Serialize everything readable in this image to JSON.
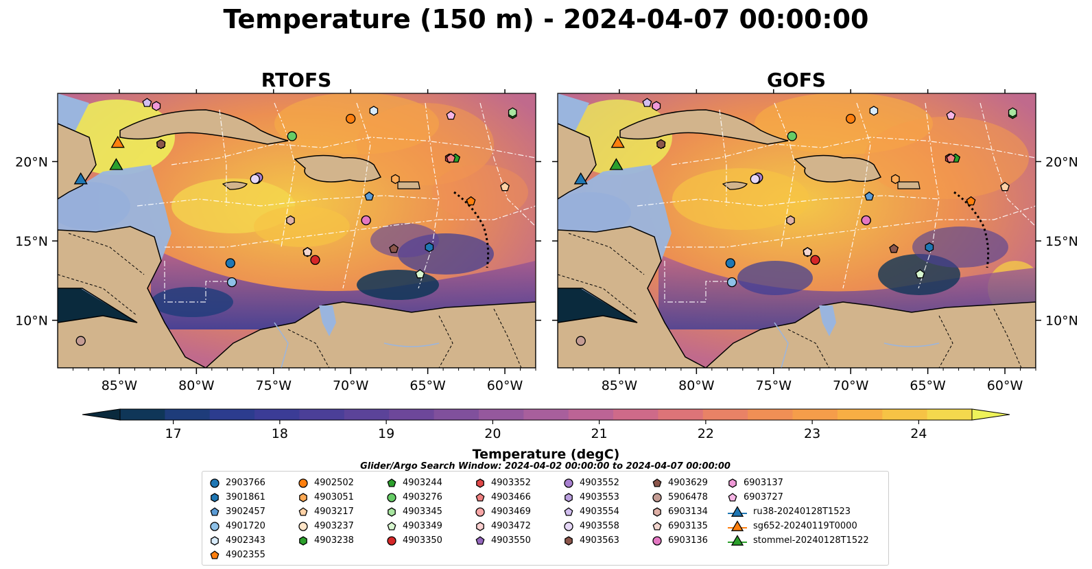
{
  "title": "Temperature (150 m) - 2024-04-07 00:00:00",
  "panels": [
    {
      "name": "RTOFS"
    },
    {
      "name": "GOFS"
    }
  ],
  "axes": {
    "lon_ticks": [
      "85°W",
      "80°W",
      "75°W",
      "70°W",
      "65°W",
      "60°W"
    ],
    "lat_ticks": [
      "20°N",
      "15°N",
      "10°N"
    ]
  },
  "chart_data": {
    "type": "heatmap",
    "colorbar": {
      "label": "Temperature (degC)",
      "min": 16.5,
      "max": 24.5,
      "step": 0.5,
      "ticks": [
        17,
        18,
        19,
        20,
        21,
        22,
        23,
        24
      ],
      "extend": "both",
      "colors": [
        "#0a2a3d",
        "#0f3658",
        "#1e3c7a",
        "#2c3c8e",
        "#3b3c96",
        "#4b3f98",
        "#5b4399",
        "#6d479a",
        "#80509c",
        "#95589d",
        "#a85f9c",
        "#bc6495",
        "#ce6a89",
        "#dd7478",
        "#e98266",
        "#f08f55",
        "#f59d4a",
        "#f7ae44",
        "#f6c345",
        "#f4d84d",
        "#eef35a"
      ]
    },
    "lon_range": [
      -89,
      -58
    ],
    "lat_range": [
      7,
      24.3
    ]
  },
  "search_window": "Glider/Argo Search Window: 2024-04-02 00:00:00 to 2024-04-07 00:00:00",
  "markers": [
    {
      "id": "2903766",
      "shape": "circle",
      "color": "#1f77b4",
      "lon": -77.8,
      "lat": 13.6
    },
    {
      "id": "3901861",
      "shape": "hexagon",
      "color": "#1f77b4",
      "lon": -64.9,
      "lat": 14.6
    },
    {
      "id": "3902457",
      "shape": "pentagon",
      "color": "#5b9bd5",
      "lon": -68.8,
      "lat": 17.8
    },
    {
      "id": "4901720",
      "shape": "circle",
      "color": "#8ec1e8",
      "lon": -77.7,
      "lat": 12.4
    },
    {
      "id": "4902343",
      "shape": "hexagon",
      "color": "#d9ecfb",
      "lon": -68.5,
      "lat": 23.2
    },
    {
      "id": "4902355",
      "shape": "pentagon",
      "color": "#ff7f0e",
      "lon": -62.2,
      "lat": 17.5
    },
    {
      "id": "4902502",
      "shape": "circle",
      "color": "#ff7f0e",
      "lon": -70.0,
      "lat": 22.7
    },
    {
      "id": "4903051",
      "shape": "hexagon",
      "color": "#ffaa55",
      "lon": -67.1,
      "lat": 18.9
    },
    {
      "id": "4903217",
      "shape": "pentagon",
      "color": "#ffd2a6",
      "lon": -60.0,
      "lat": 18.4
    },
    {
      "id": "4903237",
      "shape": "circle",
      "color": "#ffe5c8",
      "lon": -76.1,
      "lat": 18.9
    },
    {
      "id": "4903238",
      "shape": "hexagon",
      "color": "#2ca02c",
      "lon": -59.5,
      "lat": 23.0
    },
    {
      "id": "4903244",
      "shape": "pentagon",
      "color": "#2ca02c",
      "lon": -63.2,
      "lat": 20.2
    },
    {
      "id": "4903276",
      "shape": "circle",
      "color": "#66cc66",
      "lon": -73.8,
      "lat": 21.6
    },
    {
      "id": "4903345",
      "shape": "hexagon",
      "color": "#a8e6a0",
      "lon": -59.5,
      "lat": 23.1
    },
    {
      "id": "4903349",
      "shape": "pentagon",
      "color": "#d8f7d0",
      "lon": -65.5,
      "lat": 12.9
    },
    {
      "id": "4903350",
      "shape": "circle",
      "color": "#d62728",
      "lon": -72.3,
      "lat": 13.8
    },
    {
      "id": "4903352",
      "shape": "hexagon",
      "color": "#e04848",
      "lon": -63.6,
      "lat": 20.2
    },
    {
      "id": "4903466",
      "shape": "pentagon",
      "color": "#f08080",
      "lon": -63.5,
      "lat": 20.2
    },
    {
      "id": "4903469",
      "shape": "circle",
      "color": "#f7a6a6",
      "lon": -69.0,
      "lat": 16.3
    },
    {
      "id": "4903472",
      "shape": "hexagon",
      "color": "#fbd0d0",
      "lon": -72.8,
      "lat": 14.3
    },
    {
      "id": "4903550",
      "shape": "pentagon",
      "color": "#9467bd",
      "lon": -82.3,
      "lat": 21.1
    },
    {
      "id": "4903552",
      "shape": "circle",
      "color": "#a880d0",
      "lon": -76.0,
      "lat": 19.0
    },
    {
      "id": "4903553",
      "shape": "hexagon",
      "color": "#bba0e0",
      "lon": -76.2,
      "lat": 18.9
    },
    {
      "id": "4903554",
      "shape": "pentagon",
      "color": "#d2bff0",
      "lon": -83.2,
      "lat": 23.7
    },
    {
      "id": "4903558",
      "shape": "circle",
      "color": "#e6d8f7",
      "lon": -76.2,
      "lat": 18.9
    },
    {
      "id": "4903563",
      "shape": "hexagon",
      "color": "#8c564b",
      "lon": -82.3,
      "lat": 21.1
    },
    {
      "id": "4903629",
      "shape": "pentagon",
      "color": "#8c564b",
      "lon": -67.2,
      "lat": 14.5
    },
    {
      "id": "5906478",
      "shape": "circle",
      "color": "#c49c94",
      "lon": -87.5,
      "lat": 8.7
    },
    {
      "id": "6903134",
      "shape": "hexagon",
      "color": "#dfb0a6",
      "lon": -73.9,
      "lat": 16.3
    },
    {
      "id": "6903135",
      "shape": "pentagon",
      "color": "#f2d6cf",
      "lon": -72.8,
      "lat": 14.3
    },
    {
      "id": "6903136",
      "shape": "circle",
      "color": "#e377c2",
      "lon": -69.0,
      "lat": 16.3
    },
    {
      "id": "6903137",
      "shape": "hexagon",
      "color": "#f09ad8",
      "lon": -82.6,
      "lat": 23.5
    },
    {
      "id": "6903727",
      "shape": "pentagon",
      "color": "#f7b6e6",
      "lon": -63.5,
      "lat": 22.9
    }
  ],
  "gliders": [
    {
      "id": "ru38-20240128T1523",
      "color": "#1f77b4",
      "lon": -87.5,
      "lat": 18.9
    },
    {
      "id": "sg652-20240119T0000",
      "color": "#ff7f0e",
      "lon": -85.1,
      "lat": 21.2
    },
    {
      "id": "stommel-20240128T1522",
      "color": "#2ca02c",
      "lon": -85.2,
      "lat": 19.8
    }
  ]
}
